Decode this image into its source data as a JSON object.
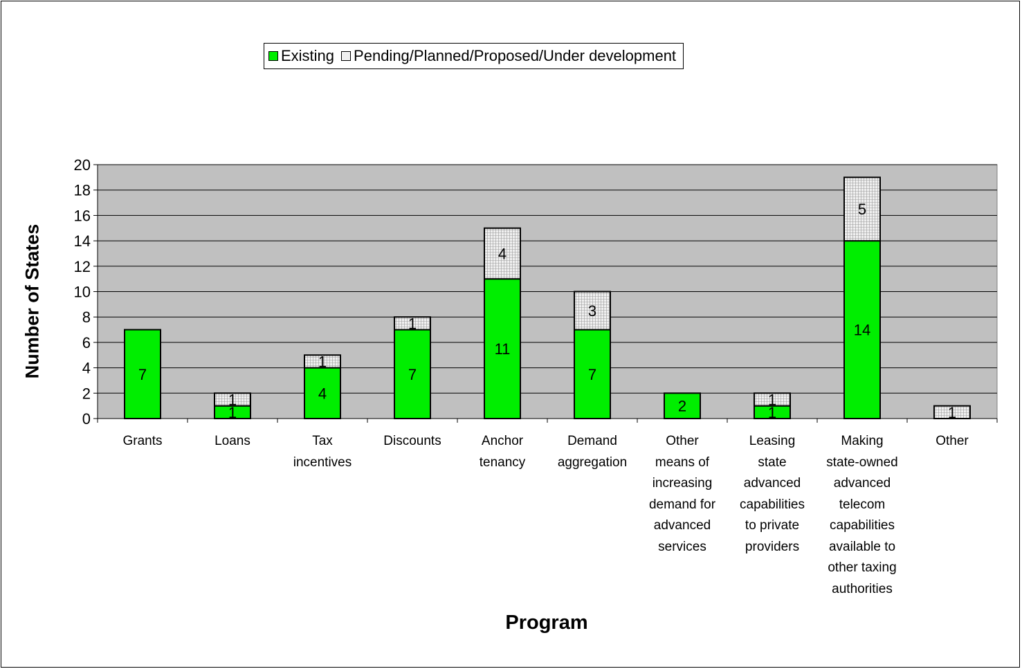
{
  "colors": {
    "plot_background": "#c0c0c0",
    "existing": "#00ee00",
    "pending": "#f0f0f0",
    "grid": "#000000"
  },
  "chart_data": {
    "type": "bar",
    "stacked": true,
    "categories": [
      "Grants",
      "Loans",
      "Tax incentives",
      "Discounts",
      "Anchor tenancy",
      "Demand aggregation",
      "Other means of increasing demand for advanced services",
      "Leasing state advanced capabilities to private providers",
      "Making state-owned advanced telecom capabilities available to other taxing authorities",
      "Other"
    ],
    "category_lines": [
      [
        "Grants"
      ],
      [
        "Loans"
      ],
      [
        "Tax",
        "incentives"
      ],
      [
        "Discounts"
      ],
      [
        "Anchor",
        "tenancy"
      ],
      [
        "Demand",
        "aggregation"
      ],
      [
        "Other",
        "means of",
        "increasing",
        "demand for",
        "advanced",
        "services"
      ],
      [
        "Leasing",
        "state",
        "advanced",
        "capabilities",
        "to private",
        "providers"
      ],
      [
        "Making",
        "state-owned",
        "advanced",
        "telecom",
        "capabilities",
        "available to",
        "other taxing",
        "authorities"
      ],
      [
        "Other"
      ]
    ],
    "series": [
      {
        "name": "Existing",
        "values": [
          7,
          1,
          4,
          7,
          11,
          7,
          2,
          1,
          14,
          0
        ]
      },
      {
        "name": "Pending/Planned/Proposed/Under development",
        "values": [
          0,
          1,
          1,
          1,
          4,
          3,
          0,
          1,
          5,
          1
        ]
      }
    ],
    "xlabel": "Program",
    "ylabel": "Number of States",
    "ylim": [
      0,
      20
    ],
    "yticks": [
      0,
      2,
      4,
      6,
      8,
      10,
      12,
      14,
      16,
      18,
      20
    ],
    "grid": true,
    "legend_position": "top-center"
  }
}
